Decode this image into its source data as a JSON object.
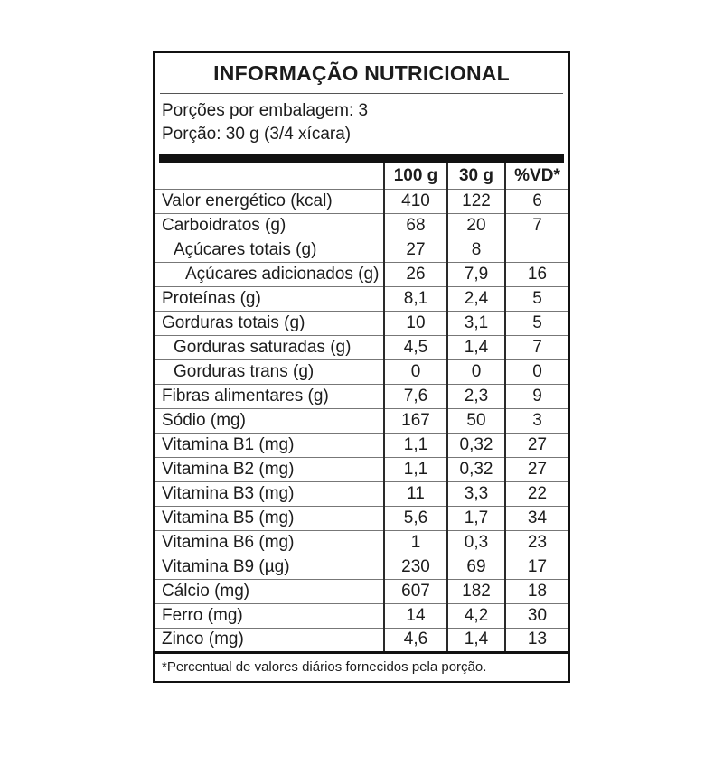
{
  "title": "INFORMAÇÃO NUTRICIONAL",
  "serving_info": {
    "servings_per_package": "Porções por embalagem: 3",
    "serving_size": "Porção: 30 g (3/4 xícara)"
  },
  "table": {
    "columns": {
      "per100g": "100 g",
      "per30g": "30 g",
      "vd": "%VD*"
    },
    "rows": [
      {
        "label": "Valor energético (kcal)",
        "per100g": "410",
        "per30g": "122",
        "vd": "6",
        "indent": 0
      },
      {
        "label": "Carboidratos (g)",
        "per100g": "68",
        "per30g": "20",
        "vd": "7",
        "indent": 0
      },
      {
        "label": "Açúcares totais (g)",
        "per100g": "27",
        "per30g": "8",
        "vd": "",
        "indent": 1
      },
      {
        "label": "Açúcares adicionados (g)",
        "per100g": "26",
        "per30g": "7,9",
        "vd": "16",
        "indent": 2
      },
      {
        "label": "Proteínas (g)",
        "per100g": "8,1",
        "per30g": "2,4",
        "vd": "5",
        "indent": 0
      },
      {
        "label": "Gorduras totais (g)",
        "per100g": "10",
        "per30g": "3,1",
        "vd": "5",
        "indent": 0
      },
      {
        "label": "Gorduras saturadas (g)",
        "per100g": "4,5",
        "per30g": "1,4",
        "vd": "7",
        "indent": 1
      },
      {
        "label": "Gorduras trans (g)",
        "per100g": "0",
        "per30g": "0",
        "vd": "0",
        "indent": 1
      },
      {
        "label": "Fibras alimentares (g)",
        "per100g": "7,6",
        "per30g": "2,3",
        "vd": "9",
        "indent": 0
      },
      {
        "label": "Sódio (mg)",
        "per100g": "167",
        "per30g": "50",
        "vd": "3",
        "indent": 0
      },
      {
        "label": "Vitamina B1 (mg)",
        "per100g": "1,1",
        "per30g": "0,32",
        "vd": "27",
        "indent": 0
      },
      {
        "label": "Vitamina B2 (mg)",
        "per100g": "1,1",
        "per30g": "0,32",
        "vd": "27",
        "indent": 0
      },
      {
        "label": "Vitamina B3 (mg)",
        "per100g": "11",
        "per30g": "3,3",
        "vd": "22",
        "indent": 0
      },
      {
        "label": "Vitamina B5 (mg)",
        "per100g": "5,6",
        "per30g": "1,7",
        "vd": "34",
        "indent": 0
      },
      {
        "label": "Vitamina B6 (mg)",
        "per100g": "1",
        "per30g": "0,3",
        "vd": "23",
        "indent": 0
      },
      {
        "label": "Vitamina B9 (µg)",
        "per100g": "230",
        "per30g": "69",
        "vd": "17",
        "indent": 0
      },
      {
        "label": "Cálcio (mg)",
        "per100g": "607",
        "per30g": "182",
        "vd": "18",
        "indent": 0
      },
      {
        "label": "Ferro (mg)",
        "per100g": "14",
        "per30g": "4,2",
        "vd": "30",
        "indent": 0
      },
      {
        "label": "Zinco (mg)",
        "per100g": "4,6",
        "per30g": "1,4",
        "vd": "13",
        "indent": 0
      }
    ]
  },
  "footnote": "*Percentual de valores diários fornecidos pela porção.",
  "colors": {
    "background": "#ffffff",
    "border": "#111111",
    "text": "#1c1c1c",
    "row_separator": "#777777"
  }
}
